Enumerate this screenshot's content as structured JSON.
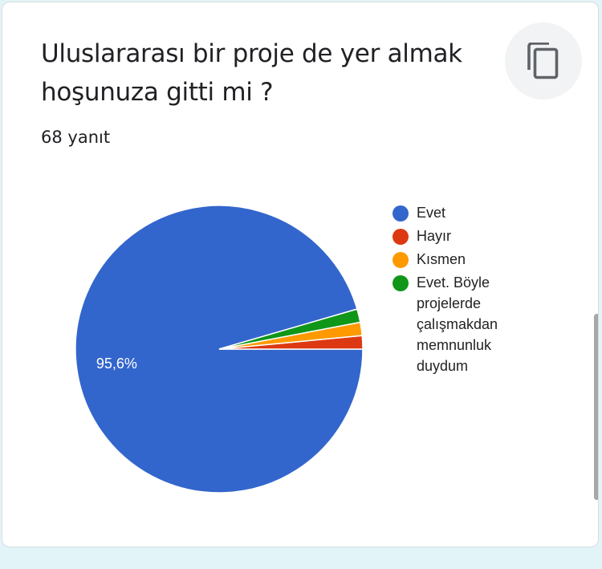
{
  "question": {
    "title": "Uluslararası bir proje de yer almak hoşunuza gitti mi ?",
    "responses": "68 yanıt"
  },
  "icons": {
    "copy": "copy-icon"
  },
  "chart_data": {
    "type": "pie",
    "title": "",
    "slices": [
      {
        "label": "Evet",
        "value": 95.6,
        "color": "#3366cc",
        "data_label": "95,6%"
      },
      {
        "label": "Hayır",
        "value": 1.5,
        "color": "#dc3912",
        "data_label": ""
      },
      {
        "label": "Kısmen",
        "value": 1.5,
        "color": "#ff9900",
        "data_label": ""
      },
      {
        "label": "Evet. Böyle projelerde çalışmakdan memnunluk duydum",
        "value": 1.5,
        "color": "#109618",
        "data_label": ""
      }
    ],
    "legend_position": "right"
  }
}
